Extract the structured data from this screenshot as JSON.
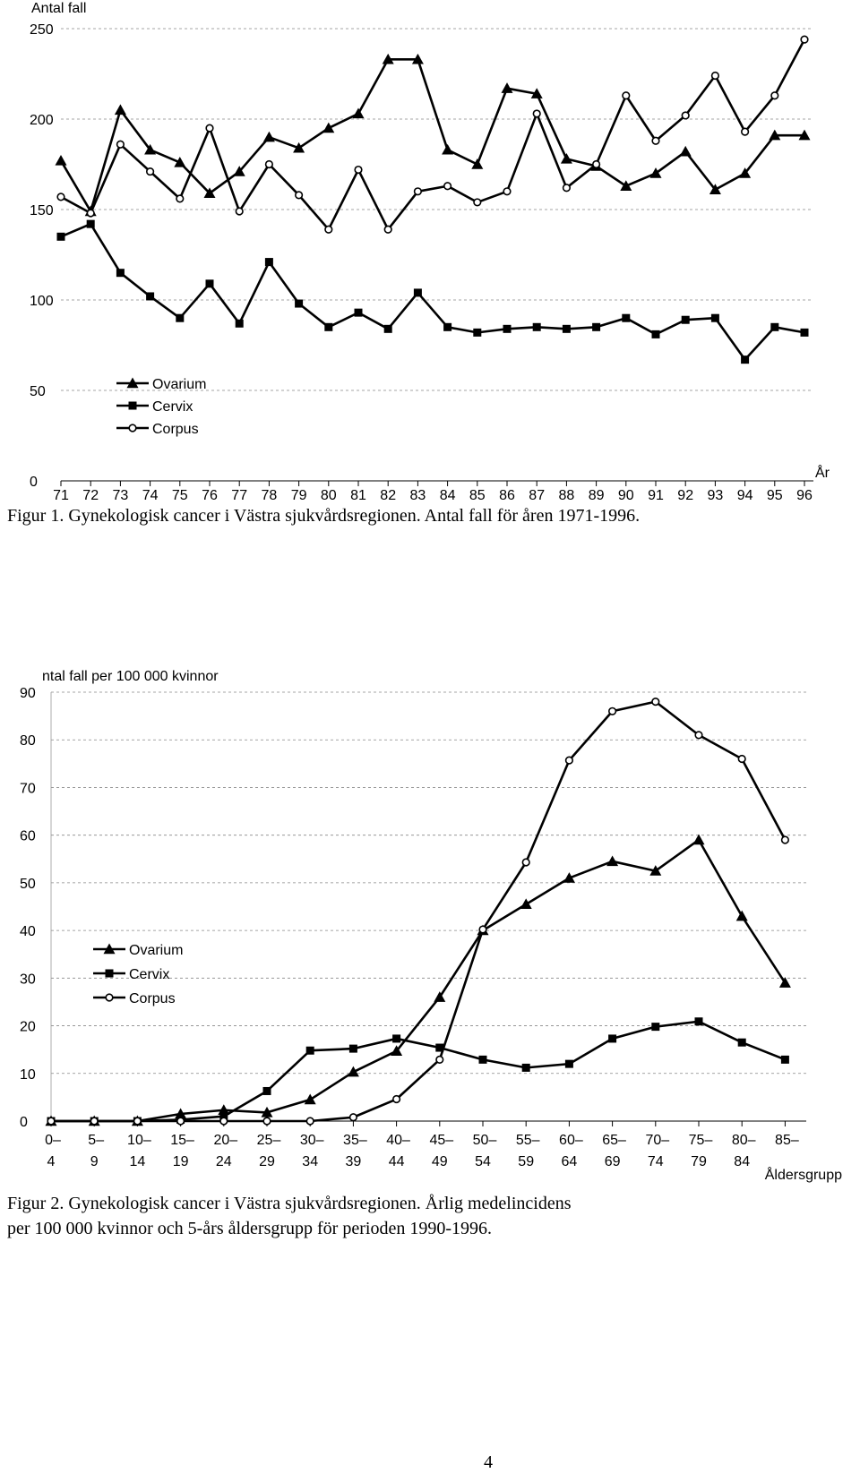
{
  "chart_data": [
    {
      "type": "line",
      "ylabel": "Antal fall",
      "xlabel": "År",
      "ylim": [
        0,
        250
      ],
      "yticks": [
        "0",
        "50",
        "100",
        "150",
        "200",
        "250"
      ],
      "categories": [
        "71",
        "72",
        "73",
        "74",
        "75",
        "76",
        "77",
        "78",
        "79",
        "80",
        "81",
        "82",
        "83",
        "84",
        "85",
        "86",
        "87",
        "88",
        "89",
        "90",
        "91",
        "92",
        "93",
        "94",
        "95",
        "96"
      ],
      "grid": "horizontal dashed",
      "legend_position": "lower-left",
      "series": [
        {
          "name": "Ovarium",
          "marker": "triangle",
          "values": [
            177,
            149,
            205,
            183,
            176,
            159,
            171,
            190,
            184,
            195,
            203,
            233,
            233,
            183,
            175,
            217,
            214,
            178,
            174,
            163,
            170,
            182,
            161,
            170,
            191,
            191
          ]
        },
        {
          "name": "Cervix",
          "marker": "square",
          "values": [
            135,
            142,
            115,
            102,
            90,
            109,
            87,
            121,
            98,
            85,
            93,
            84,
            104,
            85,
            82,
            84,
            85,
            84,
            85,
            90,
            81,
            89,
            90,
            67,
            85,
            82
          ]
        },
        {
          "name": "Corpus",
          "marker": "circle",
          "values": [
            157,
            148,
            186,
            171,
            156,
            195,
            149,
            175,
            158,
            139,
            172,
            139,
            160,
            163,
            154,
            160,
            203,
            162,
            175,
            213,
            188,
            202,
            224,
            193,
            213,
            244
          ]
        }
      ]
    },
    {
      "type": "line",
      "ylabel": "ntal fall per 100 000 kvinnor",
      "xlabel": "Åldersgrupp",
      "ylim": [
        0,
        90
      ],
      "yticks": [
        "0",
        "10",
        "20",
        "30",
        "40",
        "50",
        "60",
        "70",
        "80",
        "90"
      ],
      "categories": [
        {
          "top": "0–",
          "bottom": "4"
        },
        {
          "top": "5–",
          "bottom": "9"
        },
        {
          "top": "10–",
          "bottom": "14"
        },
        {
          "top": "15–",
          "bottom": "19"
        },
        {
          "top": "20–",
          "bottom": "24"
        },
        {
          "top": "25–",
          "bottom": "29"
        },
        {
          "top": "30–",
          "bottom": "34"
        },
        {
          "top": "35–",
          "bottom": "39"
        },
        {
          "top": "40–",
          "bottom": "44"
        },
        {
          "top": "45–",
          "bottom": "49"
        },
        {
          "top": "50–",
          "bottom": "54"
        },
        {
          "top": "55–",
          "bottom": "59"
        },
        {
          "top": "60–",
          "bottom": "64"
        },
        {
          "top": "65–",
          "bottom": "69"
        },
        {
          "top": "70–",
          "bottom": "74"
        },
        {
          "top": "75–",
          "bottom": "79"
        },
        {
          "top": "80–",
          "bottom": "84"
        },
        {
          "top": "85–",
          "bottom": ""
        }
      ],
      "grid": "horizontal dashed",
      "legend_position": "middle-left",
      "series": [
        {
          "name": "Ovarium",
          "marker": "triangle",
          "values": [
            0,
            0,
            0,
            1.5,
            2.3,
            1.8,
            4.5,
            10.3,
            14.7,
            26,
            40,
            45.5,
            51,
            54.5,
            52.5,
            59,
            43,
            29
          ]
        },
        {
          "name": "Cervix",
          "marker": "square",
          "values": [
            0,
            0,
            0,
            0.3,
            1,
            6.3,
            14.8,
            15.2,
            17.3,
            15.4,
            12.9,
            11.2,
            12,
            17.3,
            19.8,
            20.9,
            16.5,
            12.9
          ]
        },
        {
          "name": "Corpus",
          "marker": "circle",
          "values": [
            0,
            0,
            0,
            0,
            0,
            0,
            0,
            0.8,
            4.6,
            12.9,
            40.2,
            54.3,
            75.7,
            86,
            88,
            81,
            76,
            59
          ]
        }
      ]
    }
  ],
  "captions": {
    "fig1": "Figur 1. Gynekologisk cancer i Västra sjukvårdsregionen. Antal fall för åren 1971-1996.",
    "fig2_line1": "Figur 2. Gynekologisk cancer i Västra sjukvårdsregionen. Årlig medelincidens",
    "fig2_line2": "per 100 000 kvinnor och 5-års åldersgrupp för perioden 1990-1996."
  },
  "page_number": "4"
}
